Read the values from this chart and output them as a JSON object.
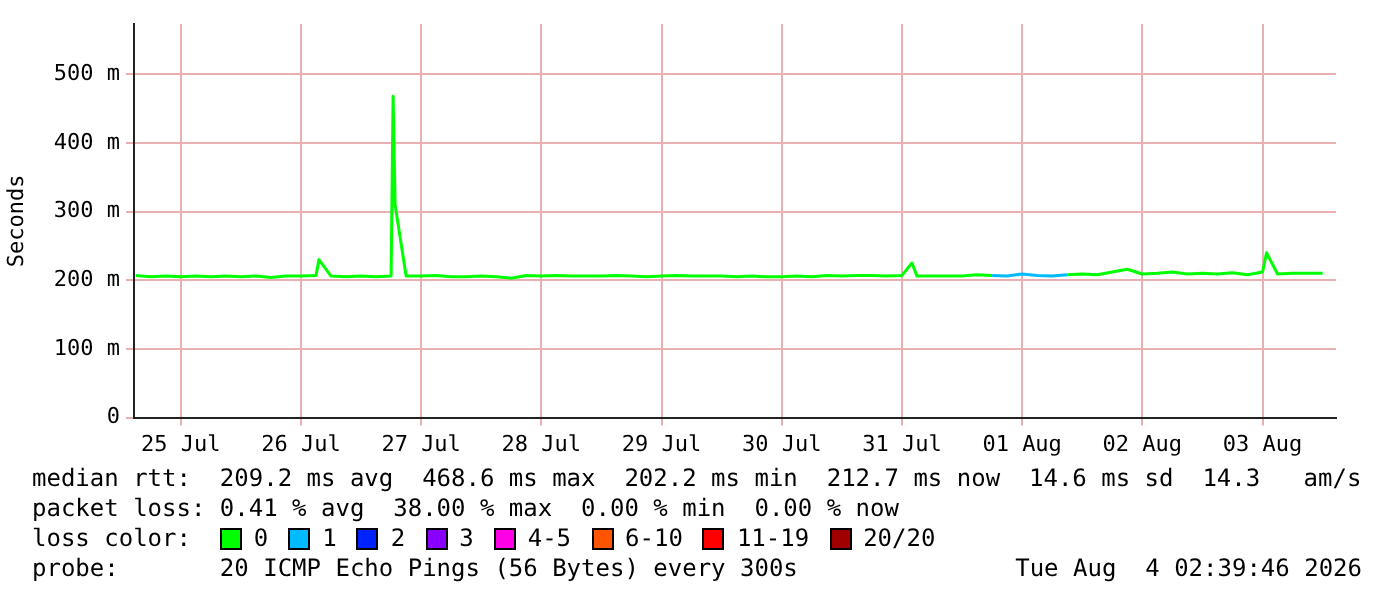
{
  "chart_data": {
    "type": "line",
    "ylabel": "Seconds",
    "legend_title": "loss color:",
    "legend": "bottom",
    "grid": true,
    "marker": "none",
    "line_style": "solid",
    "ylim": [
      0,
      573
    ],
    "yticks": [
      0,
      {
        "value": 100,
        "label": "100 m"
      },
      {
        "value": 200,
        "label": "200 m"
      },
      {
        "value": 300,
        "label": "300 m"
      },
      {
        "value": 400,
        "label": "400 m"
      },
      {
        "value": 500,
        "label": "500 m"
      }
    ],
    "xlim": [
      "2026-07-25T02:40",
      "2026-08-04T02:40"
    ],
    "xticks": [
      {
        "value": "2026-07-25T12:00",
        "label": "25 Jul"
      },
      {
        "value": "2026-07-26T12:00",
        "label": "26 Jul"
      },
      {
        "value": "2026-07-27T12:00",
        "label": "27 Jul"
      },
      {
        "value": "2026-07-28T12:00",
        "label": "28 Jul"
      },
      {
        "value": "2026-07-29T12:00",
        "label": "29 Jul"
      },
      {
        "value": "2026-07-30T12:00",
        "label": "30 Jul"
      },
      {
        "value": "2026-07-31T12:00",
        "label": "31 Jul"
      },
      {
        "value": "2026-08-01T12:00",
        "label": "01 Aug"
      },
      {
        "value": "2026-08-02T12:00",
        "label": "02 Aug"
      },
      {
        "value": "2026-08-03T12:00",
        "label": "03 Aug"
      }
    ],
    "x": [
      "2026-07-25T03:00",
      "2026-07-25T06:00",
      "2026-07-25T09:00",
      "2026-07-25T12:00",
      "2026-07-25T15:00",
      "2026-07-25T18:00",
      "2026-07-25T21:00",
      "2026-07-26T00:00",
      "2026-07-26T03:00",
      "2026-07-26T06:00",
      "2026-07-26T09:00",
      "2026-07-26T12:00",
      "2026-07-26T15:00",
      "2026-07-26T15:36",
      "2026-07-26T18:00",
      "2026-07-26T21:00",
      "2026-07-27T00:00",
      "2026-07-27T03:00",
      "2026-07-27T06:00",
      "2026-07-27T06:24",
      "2026-07-27T06:48",
      "2026-07-27T09:00",
      "2026-07-27T12:00",
      "2026-07-27T15:00",
      "2026-07-27T18:00",
      "2026-07-27T21:00",
      "2026-07-28T00:00",
      "2026-07-28T03:00",
      "2026-07-28T06:00",
      "2026-07-28T09:00",
      "2026-07-28T12:00",
      "2026-07-28T15:00",
      "2026-07-28T18:00",
      "2026-07-28T21:00",
      "2026-07-29T00:00",
      "2026-07-29T03:00",
      "2026-07-29T06:00",
      "2026-07-29T09:00",
      "2026-07-29T12:00",
      "2026-07-29T15:00",
      "2026-07-29T18:00",
      "2026-07-29T21:00",
      "2026-07-30T00:00",
      "2026-07-30T03:00",
      "2026-07-30T06:00",
      "2026-07-30T09:00",
      "2026-07-30T12:00",
      "2026-07-30T15:00",
      "2026-07-30T18:00",
      "2026-07-30T21:00",
      "2026-07-31T00:00",
      "2026-07-31T03:00",
      "2026-07-31T06:00",
      "2026-07-31T09:00",
      "2026-07-31T12:00",
      "2026-07-31T14:00",
      "2026-07-31T15:00",
      "2026-07-31T18:00",
      "2026-07-31T21:00",
      "2026-08-01T00:00",
      "2026-08-01T03:00",
      "2026-08-01T06:00",
      "2026-08-01T09:00",
      "2026-08-01T12:00",
      "2026-08-01T15:00",
      "2026-08-01T18:00",
      "2026-08-01T21:00",
      "2026-08-02T00:00",
      "2026-08-02T03:00",
      "2026-08-02T06:00",
      "2026-08-02T09:00",
      "2026-08-02T12:00",
      "2026-08-02T15:00",
      "2026-08-02T18:00",
      "2026-08-02T21:00",
      "2026-08-03T00:00",
      "2026-08-03T03:00",
      "2026-08-03T06:00",
      "2026-08-03T09:00",
      "2026-08-03T12:00",
      "2026-08-03T12:48",
      "2026-08-03T15:00",
      "2026-08-03T18:00",
      "2026-08-03T21:00",
      "2026-08-04T00:00"
    ],
    "series": [
      {
        "name": "0",
        "color": "#00ff00",
        "values": [
          207,
          205,
          206,
          205,
          206,
          205,
          206,
          205,
          206,
          204,
          206,
          206,
          207,
          230,
          206,
          205,
          206,
          205,
          206,
          468,
          310,
          206,
          206,
          207,
          205,
          205,
          206,
          205,
          203,
          207,
          206,
          207,
          206,
          206,
          206,
          207,
          206,
          205,
          206,
          207,
          206,
          206,
          206,
          205,
          206,
          205,
          205,
          206,
          205,
          207,
          206,
          207,
          207,
          206,
          207,
          225,
          206,
          206,
          206,
          206,
          208,
          207,
          null,
          null,
          null,
          null,
          208,
          209,
          208,
          212,
          216,
          209,
          210,
          212,
          209,
          210,
          209,
          211,
          208,
          212,
          240,
          209,
          210,
          210,
          210
        ]
      },
      {
        "name": "1",
        "color": "#00bbff",
        "values": [
          null,
          null,
          null,
          null,
          null,
          null,
          null,
          null,
          null,
          null,
          null,
          null,
          null,
          null,
          null,
          null,
          null,
          null,
          null,
          null,
          null,
          null,
          null,
          null,
          null,
          null,
          null,
          null,
          null,
          null,
          null,
          null,
          null,
          null,
          null,
          null,
          null,
          null,
          null,
          null,
          null,
          null,
          null,
          null,
          null,
          null,
          null,
          null,
          null,
          null,
          null,
          null,
          null,
          null,
          null,
          null,
          null,
          null,
          null,
          null,
          null,
          207,
          206,
          209,
          207,
          206,
          208,
          null,
          null,
          null,
          null,
          null,
          null,
          null,
          null,
          null,
          null,
          null,
          null,
          null,
          null,
          null,
          null,
          null,
          null
        ]
      },
      {
        "name": "2",
        "color": "#0022ff",
        "values": [
          null,
          null,
          null,
          null,
          null,
          null,
          null,
          null,
          null,
          null,
          null,
          null,
          null,
          null,
          null,
          null,
          null,
          null,
          null,
          null,
          null,
          null,
          null,
          null,
          null,
          null,
          null,
          null,
          null,
          null,
          null,
          null,
          null,
          null,
          null,
          null,
          null,
          null,
          null,
          null,
          null,
          null,
          null,
          null,
          null,
          null,
          null,
          null,
          null,
          null,
          null,
          null,
          null,
          null,
          null,
          null,
          null,
          null,
          null,
          null,
          null,
          null,
          null,
          null,
          null,
          null,
          null,
          null,
          null,
          null,
          null,
          null,
          null,
          null,
          null,
          null,
          null,
          null,
          null,
          null,
          null,
          null,
          null,
          null,
          null
        ]
      },
      {
        "name": "3",
        "color": "#8a00ff",
        "values": [
          null,
          null,
          null,
          null,
          null,
          null,
          null,
          null,
          null,
          null,
          null,
          null,
          null,
          null,
          null,
          null,
          null,
          null,
          null,
          null,
          null,
          null,
          null,
          null,
          null,
          null,
          null,
          null,
          null,
          null,
          null,
          null,
          null,
          null,
          null,
          null,
          null,
          null,
          null,
          null,
          null,
          null,
          null,
          null,
          null,
          null,
          null,
          null,
          null,
          null,
          null,
          null,
          null,
          null,
          null,
          null,
          null,
          null,
          null,
          null,
          null,
          null,
          null,
          null,
          null,
          null,
          null,
          null,
          null,
          null,
          null,
          null,
          null,
          null,
          null,
          null,
          null,
          null,
          null,
          null,
          null,
          null,
          null,
          null,
          null
        ]
      },
      {
        "name": "4-5",
        "color": "#ff00e6",
        "values": [
          null,
          null,
          null,
          null,
          null,
          null,
          null,
          null,
          null,
          null,
          null,
          null,
          null,
          null,
          null,
          null,
          null,
          null,
          null,
          null,
          null,
          null,
          null,
          null,
          null,
          null,
          null,
          null,
          null,
          null,
          null,
          null,
          null,
          null,
          null,
          null,
          null,
          null,
          null,
          null,
          null,
          null,
          null,
          null,
          null,
          null,
          null,
          null,
          null,
          null,
          null,
          null,
          null,
          null,
          null,
          null,
          null,
          null,
          null,
          null,
          null,
          null,
          null,
          null,
          null,
          null,
          null,
          null,
          null,
          null,
          null,
          null,
          null,
          null,
          null,
          null,
          null,
          null,
          null,
          null,
          null,
          null,
          null,
          null,
          null
        ]
      },
      {
        "name": "6-10",
        "color": "#ff5500",
        "values": [
          null,
          null,
          null,
          null,
          null,
          null,
          null,
          null,
          null,
          null,
          null,
          null,
          null,
          null,
          null,
          null,
          null,
          null,
          null,
          null,
          null,
          null,
          null,
          null,
          null,
          null,
          null,
          null,
          null,
          null,
          null,
          null,
          null,
          null,
          null,
          null,
          null,
          null,
          null,
          null,
          null,
          null,
          null,
          null,
          null,
          null,
          null,
          null,
          null,
          null,
          null,
          null,
          null,
          null,
          null,
          null,
          null,
          null,
          null,
          null,
          null,
          null,
          null,
          null,
          null,
          null,
          null,
          null,
          null,
          null,
          null,
          null,
          null,
          null,
          null,
          null,
          null,
          null,
          null,
          null,
          null,
          null,
          null,
          null,
          null
        ]
      },
      {
        "name": "11-19",
        "color": "#ff0000",
        "values": [
          null,
          null,
          null,
          null,
          null,
          null,
          null,
          null,
          null,
          null,
          null,
          null,
          null,
          null,
          null,
          null,
          null,
          null,
          null,
          null,
          null,
          null,
          null,
          null,
          null,
          null,
          null,
          null,
          null,
          null,
          null,
          null,
          null,
          null,
          null,
          null,
          null,
          null,
          null,
          null,
          null,
          null,
          null,
          null,
          null,
          null,
          null,
          null,
          null,
          null,
          null,
          null,
          null,
          null,
          null,
          null,
          null,
          null,
          null,
          null,
          null,
          null,
          null,
          null,
          null,
          null,
          null,
          null,
          null,
          null,
          null,
          null,
          null,
          null,
          null,
          null,
          null,
          null,
          null,
          null,
          null,
          null,
          null,
          null,
          null
        ]
      },
      {
        "name": "20/20",
        "color": "#a10000",
        "values": [
          null,
          null,
          null,
          null,
          null,
          null,
          null,
          null,
          null,
          null,
          null,
          null,
          null,
          null,
          null,
          null,
          null,
          null,
          null,
          null,
          null,
          null,
          null,
          null,
          null,
          null,
          null,
          null,
          null,
          null,
          null,
          null,
          null,
          null,
          null,
          null,
          null,
          null,
          null,
          null,
          null,
          null,
          null,
          null,
          null,
          null,
          null,
          null,
          null,
          null,
          null,
          null,
          null,
          null,
          null,
          null,
          null,
          null,
          null,
          null,
          null,
          null,
          null,
          null,
          null,
          null,
          null,
          null,
          null,
          null,
          null,
          null,
          null,
          null,
          null,
          null,
          null,
          null,
          null,
          null,
          null,
          null,
          null,
          null,
          null
        ]
      }
    ],
    "annotations": [
      "median rtt:  209.2 ms avg  468.6 ms max  202.2 ms min  212.7 ms now  14.6 ms sd  14.3   am/s",
      "packet loss: 0.41 % avg  38.00 % max  0.00 % min  0.00 % now",
      "probe:       20 ICMP Echo Pings (56 Bytes) every 300s",
      "Tue Aug  4 02:39:46 2026"
    ]
  }
}
